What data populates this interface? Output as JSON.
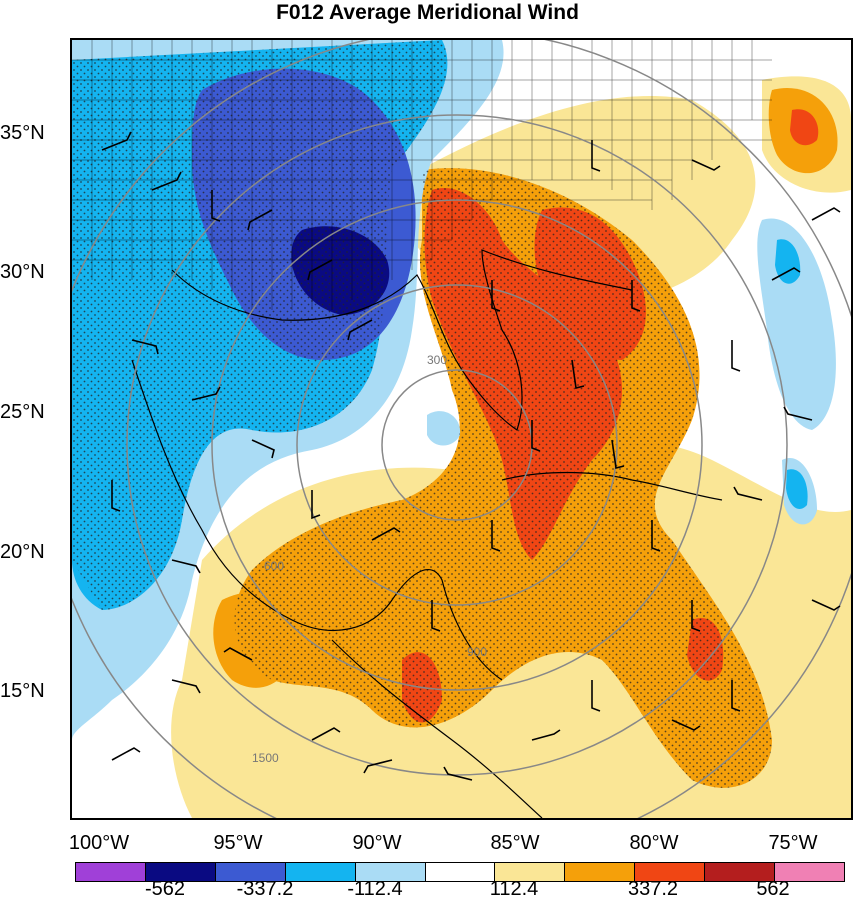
{
  "title": "F012 Average Meridional Wind",
  "lat_labels": [
    "35°N",
    "30°N",
    "25°N",
    "20°N",
    "15°N"
  ],
  "lon_labels": [
    "100°W",
    "95°W",
    "90°W",
    "85°W",
    "80°W",
    "75°W"
  ],
  "range_ring_labels": [
    "300",
    "600",
    "900",
    "1500"
  ],
  "colorbar": {
    "colors": [
      "#a040d8",
      "#0a0a82",
      "#3c5ad2",
      "#14b4f0",
      "#aadcf5",
      "#ffffff",
      "#fae696",
      "#f5a00a",
      "#f04614",
      "#b41e1e",
      "#f080b4"
    ],
    "labels": [
      "-562",
      "-337.2",
      "-112.4",
      "112.4",
      "337.2",
      "562"
    ]
  }
}
